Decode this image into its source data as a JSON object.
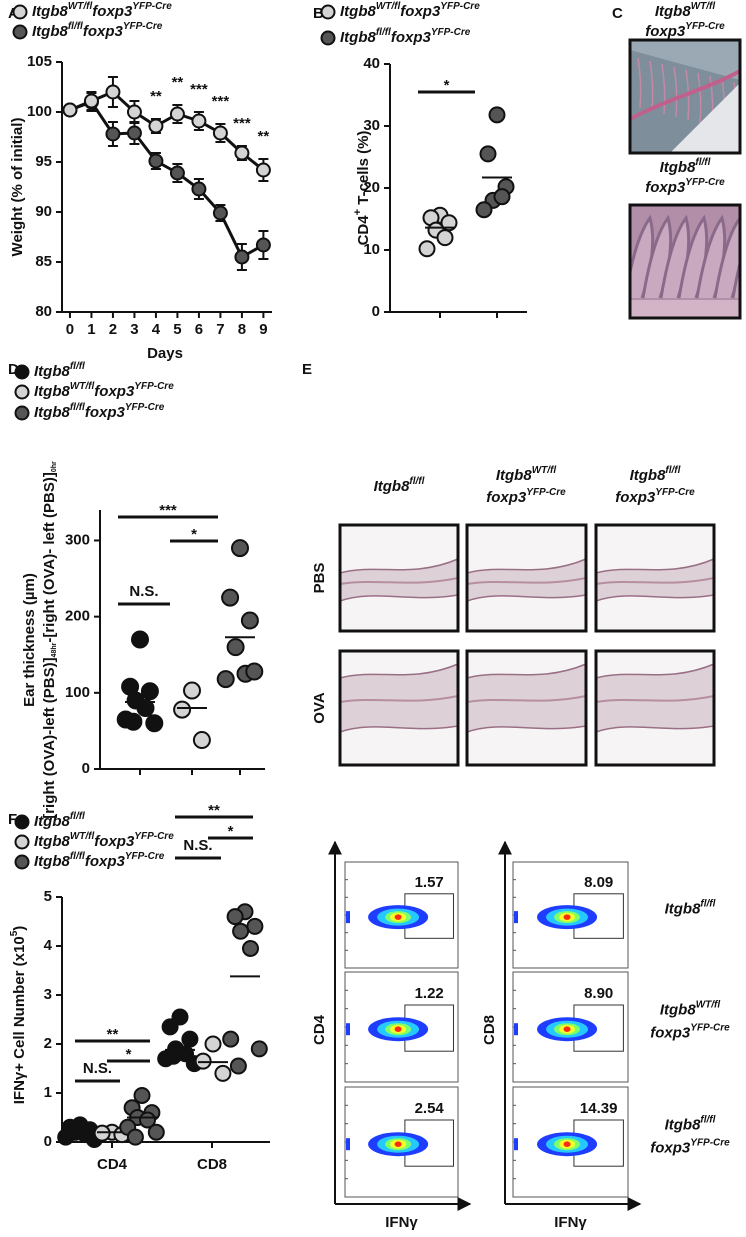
{
  "panel_labels": [
    "A",
    "B",
    "C",
    "D",
    "E",
    "F"
  ],
  "chart_data": [
    {
      "type": "line",
      "y_label": "Weight (% of initial)",
      "x_label": "Days",
      "x": [
        0,
        1,
        2,
        3,
        4,
        5,
        6,
        7,
        8,
        9
      ],
      "xlim": [
        -0.37,
        9.4
      ],
      "xticks": [
        0,
        1,
        2,
        3,
        4,
        5,
        6,
        7,
        8,
        9
      ],
      "ylim": [
        80,
        105
      ],
      "yticks": [
        80,
        85,
        90,
        95,
        100,
        105
      ],
      "series": [
        {
          "name": [
            "Itgb8",
            "WT/fl",
            "foxp3",
            "YFP-Cre"
          ],
          "color": "#d4d4d4",
          "values": [
            100.2,
            101.1,
            102,
            100,
            98.6,
            99.8,
            99.1,
            97.9,
            95.9,
            94.2
          ],
          "errors": [
            0.3,
            0.9,
            1.5,
            1.1,
            0.7,
            0.9,
            0.9,
            0.9,
            0.7,
            1.1
          ]
        },
        {
          "name": [
            "Itgb8",
            "fl/fl",
            "foxp3",
            "YFP-Cre"
          ],
          "color": "#555555",
          "values": [
            100.2,
            101,
            97.8,
            97.9,
            95.1,
            93.9,
            92.3,
            89.9,
            85.5,
            86.7
          ],
          "errors": [
            0.3,
            0.9,
            1.2,
            1.1,
            0.8,
            0.9,
            1.0,
            0.8,
            1.3,
            1.4
          ]
        }
      ],
      "annotations": [
        {
          "x": 4,
          "text": "**"
        },
        {
          "x": 5,
          "text": "**"
        },
        {
          "x": 6,
          "text": "***"
        },
        {
          "x": 7,
          "text": "***"
        },
        {
          "x": 8,
          "text": "***"
        },
        {
          "x": 9,
          "text": "**"
        }
      ]
    },
    {
      "type": "dot",
      "y_label": [
        "CD4",
        "+",
        " T-cells (%)"
      ],
      "ylim": [
        0,
        40
      ],
      "yticks": [
        0,
        10,
        20,
        30,
        40
      ],
      "series": [
        {
          "name": [
            "Itgb8",
            "WT/fl",
            "foxp3",
            "YFP-Cre"
          ],
          "color": "#d4d4d4",
          "values": [
            15.6,
            15.2,
            14.4,
            13.2,
            12,
            10.2
          ],
          "mean": 13.6
        },
        {
          "name": [
            "Itgb8",
            "fl/fl",
            "foxp3",
            "YFP-Cre"
          ],
          "color": "#555555",
          "values": [
            31.8,
            25.5,
            20.2,
            18,
            18.6,
            16.5
          ],
          "mean": 21.7
        }
      ],
      "comparisons": [
        {
          "groups": [
            0,
            1
          ],
          "text": "*"
        }
      ]
    },
    {
      "type": "dot",
      "y_label": [
        "Ear thickness (µm)"
      ],
      "y_label_2": [
        "[right (OVA)-left (PBS)]",
        "48hr",
        "-[right (OVA)- left (PBS)]",
        "0hr"
      ],
      "ylim": [
        0,
        340
      ],
      "yticks": [
        0,
        100,
        200,
        300
      ],
      "series": [
        {
          "name": [
            "Itgb8",
            "fl/fl"
          ],
          "color": "#111111",
          "values": [
            170,
            108,
            102,
            90,
            80,
            65,
            60,
            62
          ],
          "mean": 88
        },
        {
          "name": [
            "Itgb8",
            "WT/fl",
            "foxp3",
            "YFP-Cre"
          ],
          "color": "#d4d4d4",
          "values": [
            103,
            78,
            38
          ],
          "mean": 80
        },
        {
          "name": [
            "Itgb8",
            "fl/fl",
            "foxp3",
            "YFP-Cre"
          ],
          "color": "#555555",
          "values": [
            290,
            225,
            195,
            160,
            125,
            118,
            128
          ],
          "mean": 173
        }
      ],
      "comparisons": [
        {
          "groups": [
            0,
            1
          ],
          "text": "N.S."
        },
        {
          "groups": [
            0,
            2
          ],
          "text": "***"
        },
        {
          "groups": [
            1,
            2
          ],
          "text": "*"
        }
      ]
    },
    {
      "type": "dot",
      "y_label": [
        "IFNγ+ Cell Number (x10",
        "5",
        ")"
      ],
      "categories": [
        "CD4",
        "CD8"
      ],
      "ylim": [
        0,
        5
      ],
      "yticks": [
        0,
        1,
        2,
        3,
        4,
        5
      ],
      "series": [
        {
          "name": [
            "Itgb8",
            "fl/fl"
          ],
          "color": "#111111",
          "values": [
            [
              0.35,
              0.3,
              0.25,
              0.2,
              0.15,
              0.1,
              0.05,
              0.2
            ],
            [
              2.55,
              2.35,
              2.1,
              1.9,
              1.8,
              1.7,
              1.6,
              1.75
            ]
          ],
          "means": [
            0.22,
            1.88
          ]
        },
        {
          "name": [
            "Itgb8",
            "WT/fl",
            "foxp3",
            "YFP-Cre"
          ],
          "color": "#d4d4d4",
          "values": [
            [
              0.2,
              0.18,
              0.15
            ],
            [
              2.0,
              1.65,
              1.4
            ]
          ],
          "means": [
            0.2,
            1.63
          ]
        },
        {
          "name": [
            "Itgb8",
            "fl/fl",
            "foxp3",
            "YFP-Cre"
          ],
          "color": "#555555",
          "values": [
            [
              0.95,
              0.7,
              0.6,
              0.5,
              0.45,
              0.3,
              0.2,
              0.1
            ],
            [
              4.7,
              4.6,
              4.4,
              4.3,
              3.95,
              2.1,
              1.9,
              1.55
            ]
          ],
          "means": [
            0.5,
            3.38
          ]
        }
      ],
      "comparisons": [
        {
          "category": 0,
          "groups": [
            0,
            2
          ],
          "text": "**"
        },
        {
          "category": 0,
          "groups": [
            0,
            1
          ],
          "text": "N.S."
        },
        {
          "category": 0,
          "groups": [
            1,
            2
          ],
          "text": "*"
        },
        {
          "category": 1,
          "groups": [
            0,
            2
          ],
          "text": "**"
        },
        {
          "category": 1,
          "groups": [
            0,
            1
          ],
          "text": "N.S."
        },
        {
          "category": 1,
          "groups": [
            1,
            2
          ],
          "text": "*"
        }
      ]
    }
  ],
  "colon": {
    "labels": [
      [
        [
          "Itgb8",
          "WT/fl"
        ],
        [
          "foxp3",
          "YFP-Cre"
        ]
      ],
      [
        [
          "Itgb8",
          "fl/fl"
        ],
        [
          "foxp3",
          "YFP-Cre"
        ]
      ]
    ]
  },
  "ear": {
    "columns": [
      [
        [
          "Itgb8",
          "fl/fl"
        ]
      ],
      [
        [
          "Itgb8",
          "WT/fl"
        ],
        [
          "foxp3",
          "YFP-Cre"
        ]
      ],
      [
        [
          "Itgb8",
          "fl/fl"
        ],
        [
          "foxp3",
          "YFP-Cre"
        ]
      ]
    ],
    "rows": [
      "PBS",
      "OVA"
    ]
  },
  "flow": {
    "panels": [
      {
        "y_label": "CD4",
        "x_label": "IFNγ",
        "gates": [
          "1.57",
          "1.22",
          "2.54"
        ]
      },
      {
        "y_label": "CD8",
        "x_label": "IFNγ",
        "gates": [
          "8.09",
          "8.90",
          "14.39"
        ]
      }
    ],
    "row_labels": [
      [
        [
          "Itgb8",
          "fl/fl"
        ]
      ],
      [
        [
          "Itgb8",
          "WT/fl"
        ],
        [
          "foxp3",
          "YFP-Cre"
        ]
      ],
      [
        [
          "Itgb8",
          "fl/fl"
        ],
        [
          "foxp3",
          "YFP-Cre"
        ]
      ]
    ]
  }
}
